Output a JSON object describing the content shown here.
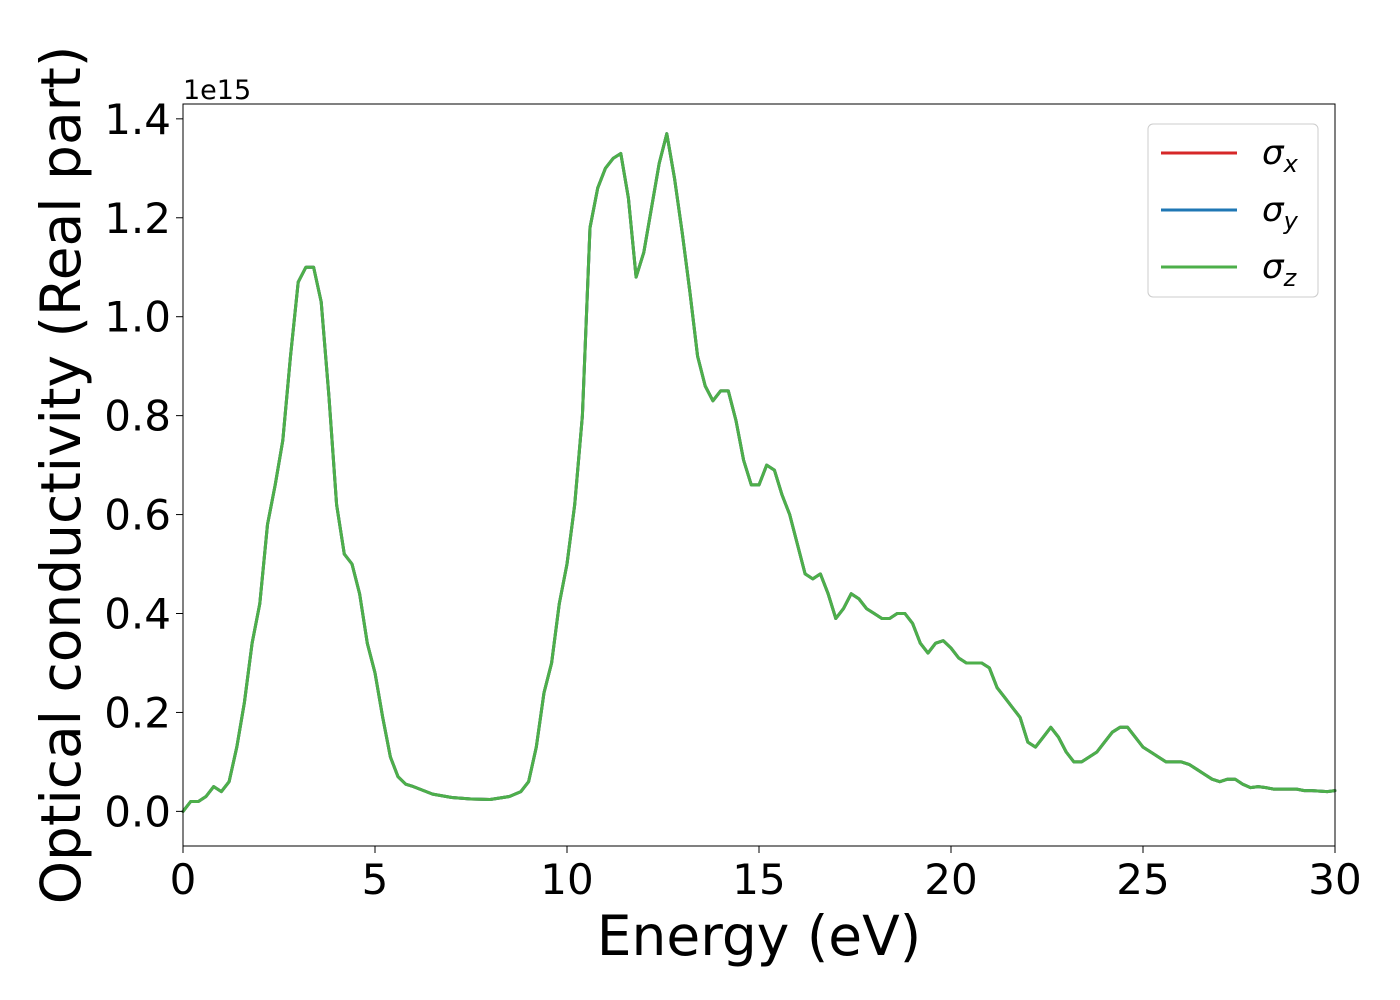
{
  "chart_data": {
    "type": "line",
    "xlabel": "Energy (eV)",
    "ylabel": "Optical conductivity (Real part)",
    "offset_text": "1e15",
    "xlim": [
      0,
      30
    ],
    "ylim": [
      -0.07,
      1.43
    ],
    "xticks": [
      0,
      5,
      10,
      15,
      20,
      25,
      30
    ],
    "xtick_labels": [
      "0",
      "5",
      "10",
      "15",
      "20",
      "25",
      "30"
    ],
    "yticks": [
      0.0,
      0.2,
      0.4,
      0.6,
      0.8,
      1.0,
      1.2,
      1.4
    ],
    "ytick_labels": [
      "0.0",
      "0.2",
      "0.4",
      "0.6",
      "0.8",
      "1.0",
      "1.2",
      "1.4"
    ],
    "grid": false,
    "legend_position": "top-right",
    "x": [
      0,
      0.2,
      0.4,
      0.6,
      0.8,
      1.0,
      1.2,
      1.4,
      1.6,
      1.8,
      2.0,
      2.2,
      2.4,
      2.6,
      2.8,
      3.0,
      3.2,
      3.4,
      3.6,
      3.8,
      4.0,
      4.2,
      4.4,
      4.6,
      4.8,
      5.0,
      5.2,
      5.4,
      5.6,
      5.8,
      6.0,
      6.5,
      7.0,
      7.5,
      8.0,
      8.5,
      8.8,
      9.0,
      9.2,
      9.4,
      9.6,
      9.8,
      10.0,
      10.2,
      10.4,
      10.6,
      10.8,
      11.0,
      11.2,
      11.4,
      11.6,
      11.8,
      12.0,
      12.2,
      12.4,
      12.6,
      12.8,
      13.0,
      13.2,
      13.4,
      13.6,
      13.8,
      14.0,
      14.2,
      14.4,
      14.6,
      14.8,
      15.0,
      15.2,
      15.4,
      15.6,
      15.8,
      16.0,
      16.2,
      16.4,
      16.6,
      16.8,
      17.0,
      17.2,
      17.4,
      17.6,
      17.8,
      18.0,
      18.2,
      18.4,
      18.6,
      18.8,
      19.0,
      19.2,
      19.4,
      19.6,
      19.8,
      20.0,
      20.2,
      20.4,
      20.6,
      20.8,
      21.0,
      21.2,
      21.4,
      21.6,
      21.8,
      22.0,
      22.2,
      22.4,
      22.6,
      22.8,
      23.0,
      23.2,
      23.4,
      23.6,
      23.8,
      24.0,
      24.2,
      24.4,
      24.6,
      24.8,
      25.0,
      25.2,
      25.4,
      25.6,
      25.8,
      26.0,
      26.2,
      26.4,
      26.6,
      26.8,
      27.0,
      27.2,
      27.4,
      27.6,
      27.8,
      28.0,
      28.2,
      28.4,
      28.6,
      28.8,
      29.0,
      29.2,
      29.4,
      29.6,
      29.8,
      30.0
    ],
    "series": [
      {
        "name": "σx",
        "color": "#d62728"
      },
      {
        "name": "σy",
        "color": "#1f77b4"
      },
      {
        "name": "σz",
        "color": "#4daf4a"
      }
    ],
    "y": [
      0.0,
      0.02,
      0.02,
      0.03,
      0.05,
      0.04,
      0.06,
      0.13,
      0.22,
      0.34,
      0.42,
      0.58,
      0.66,
      0.75,
      0.92,
      1.07,
      1.1,
      1.1,
      1.03,
      0.84,
      0.62,
      0.52,
      0.5,
      0.44,
      0.34,
      0.28,
      0.19,
      0.11,
      0.07,
      0.055,
      0.05,
      0.035,
      0.028,
      0.025,
      0.024,
      0.03,
      0.04,
      0.06,
      0.13,
      0.24,
      0.3,
      0.42,
      0.5,
      0.62,
      0.8,
      1.18,
      1.26,
      1.3,
      1.32,
      1.33,
      1.24,
      1.08,
      1.13,
      1.22,
      1.31,
      1.37,
      1.28,
      1.17,
      1.05,
      0.92,
      0.86,
      0.83,
      0.85,
      0.85,
      0.79,
      0.71,
      0.66,
      0.66,
      0.7,
      0.69,
      0.64,
      0.6,
      0.54,
      0.48,
      0.47,
      0.48,
      0.44,
      0.39,
      0.41,
      0.44,
      0.43,
      0.41,
      0.4,
      0.39,
      0.39,
      0.4,
      0.4,
      0.38,
      0.34,
      0.32,
      0.34,
      0.345,
      0.33,
      0.31,
      0.3,
      0.3,
      0.3,
      0.29,
      0.25,
      0.23,
      0.21,
      0.19,
      0.14,
      0.13,
      0.15,
      0.17,
      0.15,
      0.12,
      0.1,
      0.1,
      0.11,
      0.12,
      0.14,
      0.16,
      0.17,
      0.17,
      0.15,
      0.13,
      0.12,
      0.11,
      0.1,
      0.1,
      0.1,
      0.095,
      0.085,
      0.075,
      0.065,
      0.06,
      0.065,
      0.065,
      0.055,
      0.048,
      0.05,
      0.048,
      0.045,
      0.045,
      0.045,
      0.045,
      0.042,
      0.042,
      0.041,
      0.04,
      0.042
    ]
  }
}
